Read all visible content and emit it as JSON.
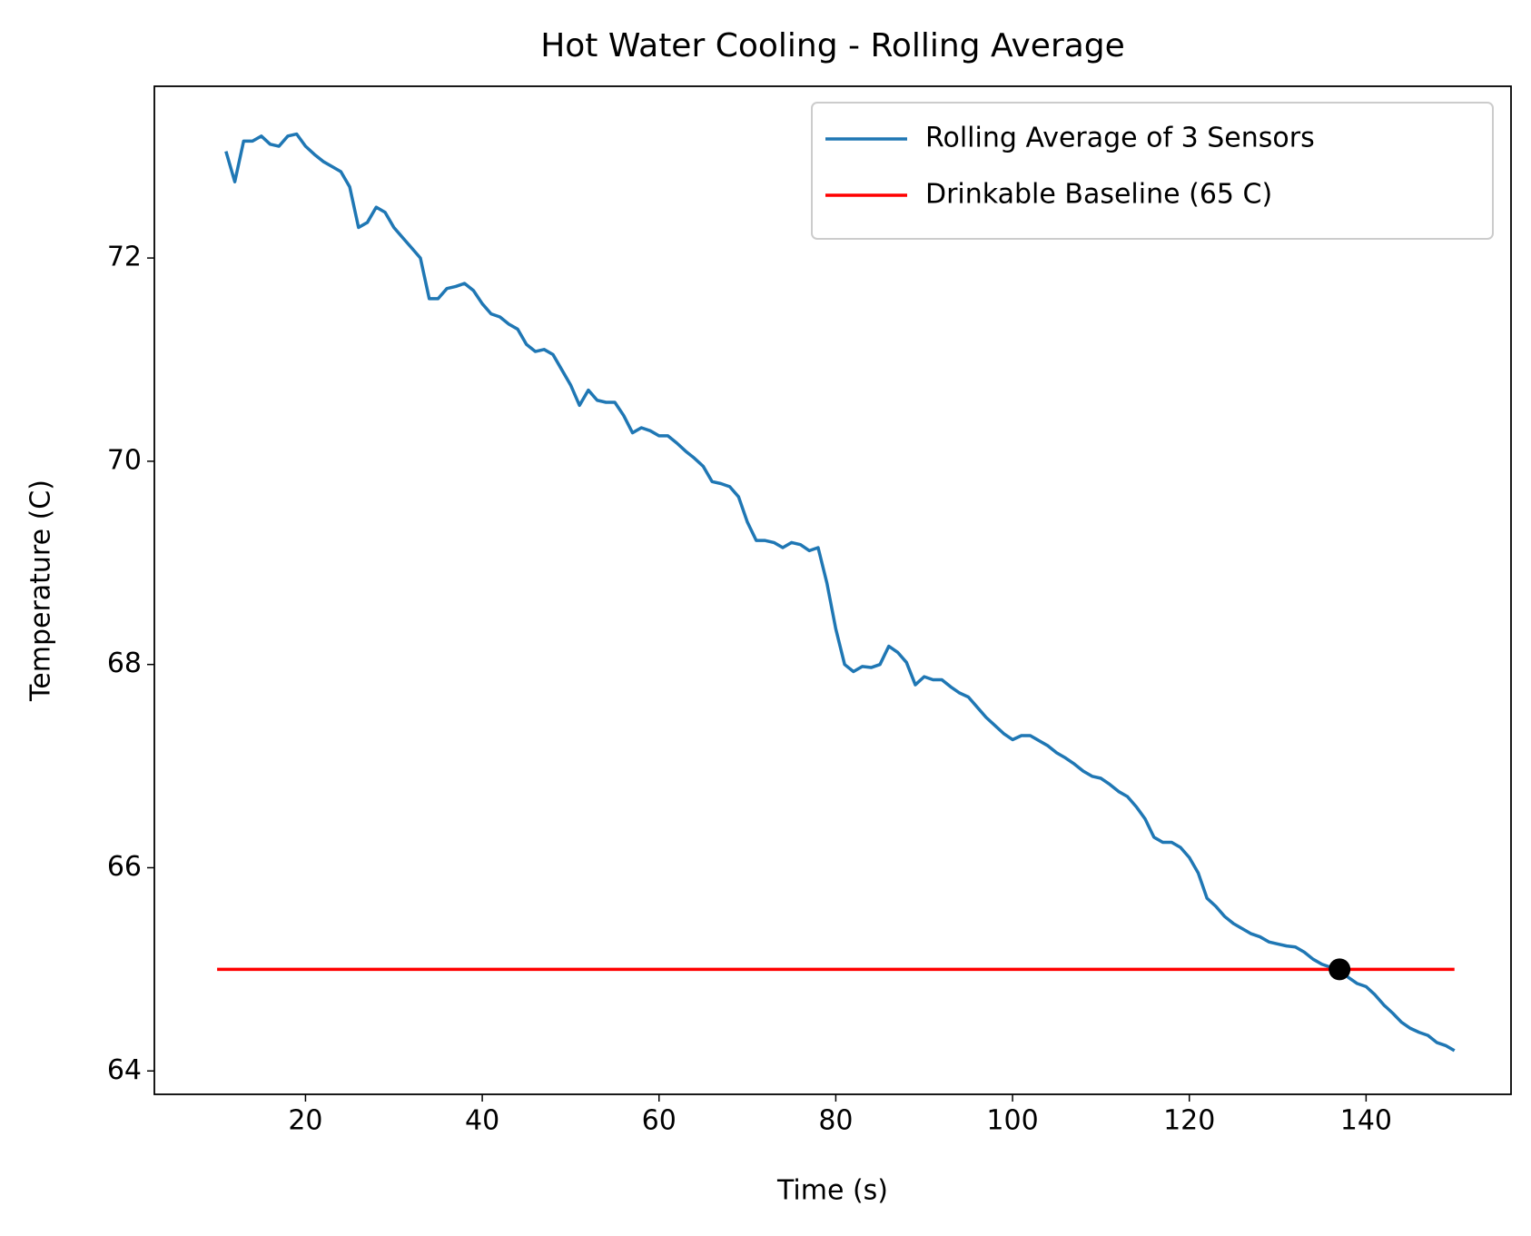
{
  "chart_data": {
    "type": "line",
    "title": "Hot Water Cooling - Rolling Average",
    "xlabel": "Time (s)",
    "ylabel": "Temperature (C)",
    "xlim": [
      2.9,
      156.4
    ],
    "ylim": [
      63.77,
      73.69
    ],
    "xticks": [
      20,
      40,
      60,
      80,
      100,
      120,
      140
    ],
    "yticks": [
      64,
      66,
      68,
      70,
      72
    ],
    "legend": "upper right",
    "series": [
      {
        "name": "Rolling Average of 3 Sensors",
        "color": "#1f77b4",
        "x": [
          11,
          12,
          13,
          14,
          15,
          16,
          17,
          18,
          19,
          20,
          21,
          22,
          23,
          24,
          25,
          26,
          27,
          28,
          29,
          30,
          31,
          32,
          33,
          34,
          35,
          36,
          37,
          38,
          39,
          40,
          41,
          42,
          43,
          44,
          45,
          46,
          47,
          48,
          49,
          50,
          51,
          52,
          53,
          54,
          55,
          56,
          57,
          58,
          59,
          60,
          61,
          62,
          63,
          64,
          65,
          66,
          67,
          68,
          69,
          70,
          71,
          72,
          73,
          74,
          75,
          76,
          77,
          78,
          79,
          80,
          81,
          82,
          83,
          84,
          85,
          86,
          87,
          88,
          89,
          90,
          91,
          92,
          93,
          94,
          95,
          96,
          97,
          98,
          99,
          100,
          101,
          102,
          103,
          104,
          105,
          106,
          107,
          108,
          109,
          110,
          111,
          112,
          113,
          114,
          115,
          116,
          117,
          118,
          119,
          120,
          121,
          122,
          123,
          124,
          125,
          126,
          127,
          128,
          129,
          130,
          131,
          132,
          133,
          134,
          135,
          136,
          137,
          138,
          139,
          140,
          141,
          142,
          143,
          144,
          145,
          146,
          147,
          148,
          149,
          150
        ],
        "values": [
          73.05,
          72.75,
          73.15,
          73.15,
          73.2,
          73.12,
          73.1,
          73.2,
          73.22,
          73.1,
          73.02,
          72.95,
          72.9,
          72.85,
          72.7,
          72.3,
          72.35,
          72.5,
          72.45,
          72.3,
          72.2,
          72.1,
          72.0,
          71.6,
          71.6,
          71.7,
          71.72,
          71.75,
          71.68,
          71.55,
          71.45,
          71.42,
          71.35,
          71.3,
          71.15,
          71.08,
          71.1,
          71.05,
          70.9,
          70.75,
          70.55,
          70.7,
          70.6,
          70.58,
          70.58,
          70.45,
          70.28,
          70.33,
          70.3,
          70.25,
          70.25,
          70.18,
          70.1,
          70.03,
          69.95,
          69.8,
          69.78,
          69.75,
          69.65,
          69.4,
          69.22,
          69.22,
          69.2,
          69.15,
          69.2,
          69.18,
          69.12,
          69.15,
          68.8,
          68.35,
          68.0,
          67.93,
          67.98,
          67.97,
          68.0,
          68.18,
          68.12,
          68.02,
          67.8,
          67.88,
          67.85,
          67.85,
          67.78,
          67.72,
          67.68,
          67.58,
          67.48,
          67.4,
          67.32,
          67.26,
          67.3,
          67.3,
          67.25,
          67.2,
          67.13,
          67.08,
          67.02,
          66.95,
          66.9,
          66.88,
          66.82,
          66.75,
          66.7,
          66.6,
          66.48,
          66.3,
          66.25,
          66.25,
          66.2,
          66.1,
          65.95,
          65.7,
          65.62,
          65.52,
          65.45,
          65.4,
          65.35,
          65.32,
          65.27,
          65.25,
          65.23,
          65.22,
          65.17,
          65.1,
          65.05,
          65.02,
          65.0,
          64.92,
          64.86,
          64.83,
          64.75,
          64.65,
          64.57,
          64.48,
          64.42,
          64.38,
          64.35,
          64.28,
          64.25,
          64.2
        ]
      },
      {
        "name": "Drinkable Baseline (65 C)",
        "color": "#ff0000",
        "x": [
          10,
          150
        ],
        "values": [
          65,
          65
        ]
      }
    ],
    "markers": [
      {
        "x": 137,
        "y": 65,
        "color": "#000000"
      }
    ]
  }
}
